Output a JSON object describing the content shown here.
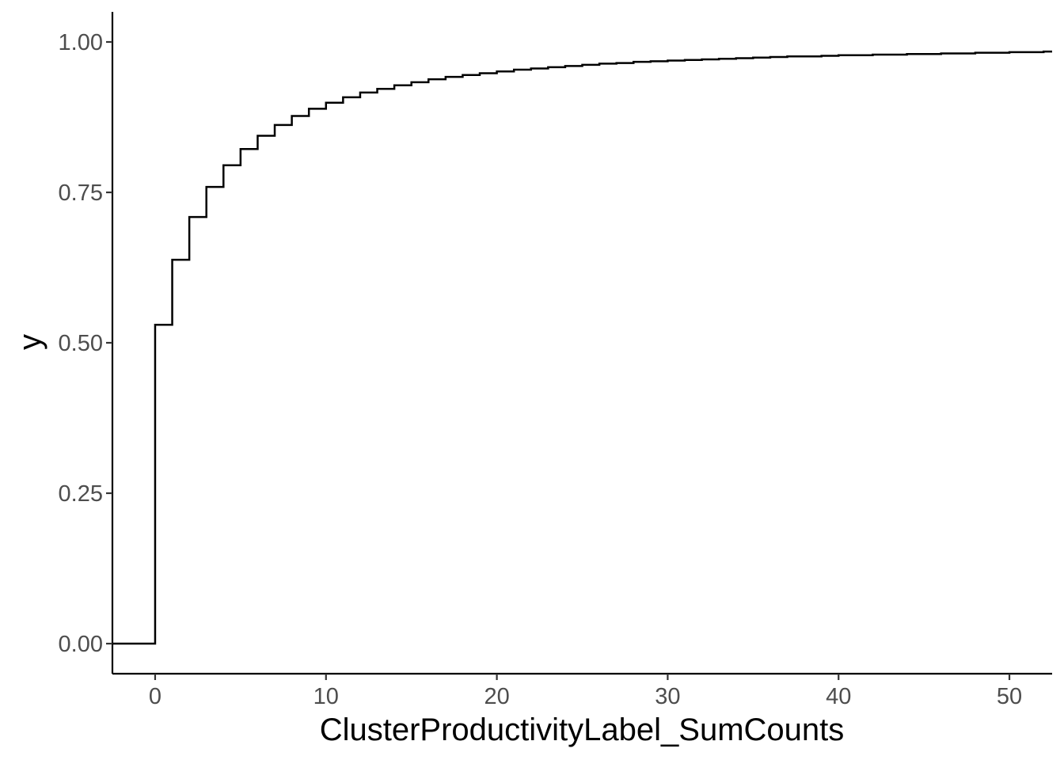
{
  "chart_data": {
    "type": "line",
    "style": "step",
    "xlabel": "ClusterProductivityLabel_SumCounts",
    "ylabel": "y",
    "xlim": [
      -2.5,
      52.5
    ],
    "ylim": [
      -0.05,
      1.05
    ],
    "x_ticks": [
      0,
      10,
      20,
      30,
      40,
      50
    ],
    "x_tick_labels": [
      "0",
      "10",
      "20",
      "30",
      "40",
      "50"
    ],
    "y_ticks": [
      0,
      0.25,
      0.5,
      0.75,
      1.0
    ],
    "y_tick_labels": [
      "0.00",
      "0.25",
      "0.50",
      "0.75",
      "1.00"
    ],
    "grid": false,
    "legend": "none",
    "series": [
      {
        "x": [
          -2.5,
          0,
          1,
          2,
          3,
          4,
          5,
          6,
          7,
          8,
          9,
          10,
          11,
          12,
          13,
          14,
          15,
          16,
          17,
          18,
          19,
          20,
          21,
          22,
          23,
          24,
          25,
          26,
          27,
          28,
          29,
          30,
          31,
          32,
          33,
          34,
          35,
          36,
          37,
          38,
          39,
          40,
          41,
          42,
          43,
          44,
          45,
          46,
          47,
          48,
          49,
          50,
          51,
          52,
          52.5
        ],
        "y": [
          0.0,
          0.53,
          0.638,
          0.709,
          0.759,
          0.795,
          0.822,
          0.844,
          0.862,
          0.877,
          0.889,
          0.899,
          0.908,
          0.916,
          0.922,
          0.928,
          0.933,
          0.938,
          0.942,
          0.945,
          0.948,
          0.951,
          0.954,
          0.956,
          0.958,
          0.96,
          0.962,
          0.964,
          0.965,
          0.967,
          0.968,
          0.969,
          0.97,
          0.971,
          0.972,
          0.973,
          0.974,
          0.975,
          0.976,
          0.976,
          0.977,
          0.978,
          0.978,
          0.979,
          0.979,
          0.98,
          0.98,
          0.981,
          0.981,
          0.982,
          0.982,
          0.983,
          0.983,
          0.984,
          0.984
        ]
      }
    ]
  }
}
